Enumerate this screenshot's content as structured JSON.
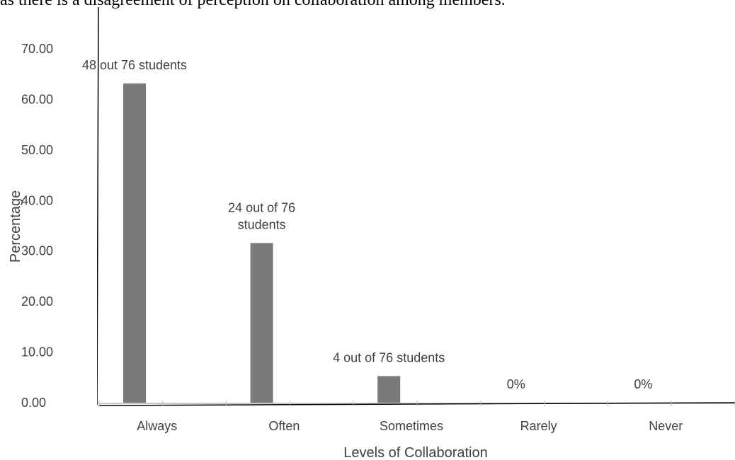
{
  "caption": "as there is a disagreement of perception on collaboration among members.",
  "colors": {
    "bar": "#7a7a7a",
    "text": "#404040",
    "axis": "#000000",
    "baseline": "#c8c8c8",
    "tick": "#bfbfbf"
  },
  "chart_data": {
    "type": "bar",
    "xlabel": "Levels of Collaboration",
    "ylabel": "Percentage",
    "categories": [
      "Always",
      "Often",
      "Sometimes",
      "Rarely",
      "Never"
    ],
    "values": [
      63.16,
      31.58,
      5.26,
      0,
      0
    ],
    "data_labels": [
      [
        "48 out 76 students"
      ],
      [
        "24 out of 76",
        "students"
      ],
      [
        "4 out of 76 students"
      ],
      [
        "0%"
      ],
      [
        "0%"
      ]
    ],
    "yticks": [
      "0.00",
      "10.00",
      "20.00",
      "30.00",
      "40.00",
      "50.00",
      "60.00",
      "70.00"
    ],
    "ylim": [
      0,
      70
    ],
    "grid": false,
    "legend": "none"
  }
}
